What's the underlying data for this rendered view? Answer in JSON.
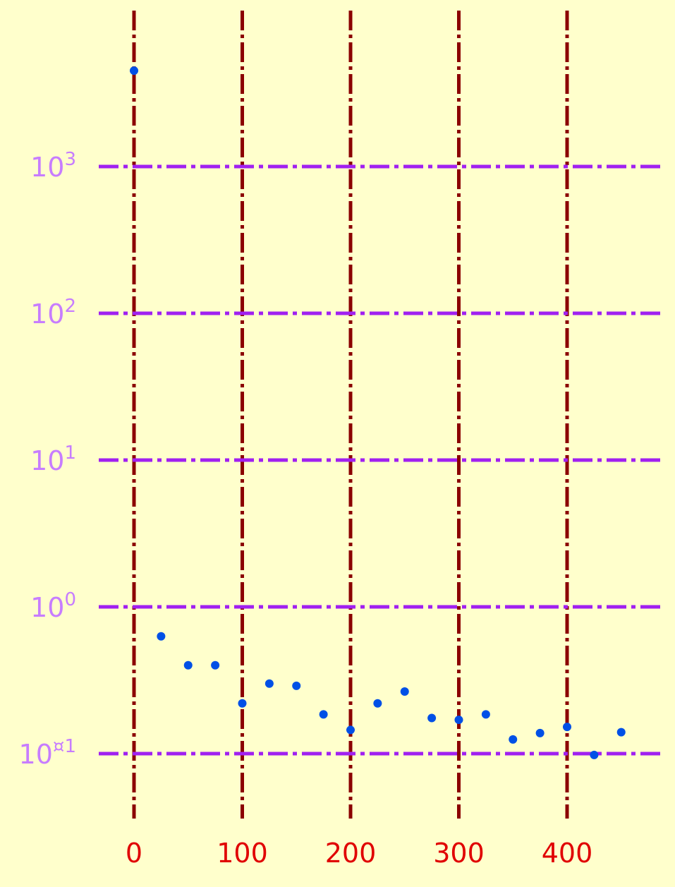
{
  "chart_data": {
    "type": "scatter",
    "title": "",
    "xlabel": "",
    "ylabel": "",
    "yscale": "log",
    "xlim": [
      -30,
      490
    ],
    "ylim": [
      0.035,
      5000
    ],
    "x_ticks": [
      0,
      100,
      200,
      300,
      400
    ],
    "x_tick_labels": [
      "0",
      "100",
      "200",
      "300",
      "400"
    ],
    "y_ticks": [
      0.1,
      1,
      10,
      100,
      1000
    ],
    "y_tick_labels": [
      {
        "base": "10",
        "exp": "¤1"
      },
      {
        "base": "10",
        "exp": "0"
      },
      {
        "base": "10",
        "exp": "1"
      },
      {
        "base": "10",
        "exp": "2"
      },
      {
        "base": "10",
        "exp": "3"
      }
    ],
    "grid": true,
    "legend": "none",
    "colors": {
      "background": "#ffffcc",
      "points": "#0050e6",
      "x_grid": "#8b0000",
      "y_grid": "#a020f0",
      "x_tick_text": "#e00000",
      "y_tick_text": "#c77dff"
    },
    "series": [
      {
        "x": [
          0,
          25,
          50,
          75,
          100,
          125,
          150,
          175,
          200,
          225,
          250,
          275,
          300,
          325,
          350,
          375,
          400,
          425,
          450
        ],
        "y": [
          4500,
          0.63,
          0.4,
          0.4,
          0.22,
          0.3,
          0.29,
          0.185,
          0.145,
          0.22,
          0.265,
          0.175,
          0.17,
          0.185,
          0.125,
          0.138,
          0.152,
          0.098,
          0.14
        ]
      }
    ]
  }
}
